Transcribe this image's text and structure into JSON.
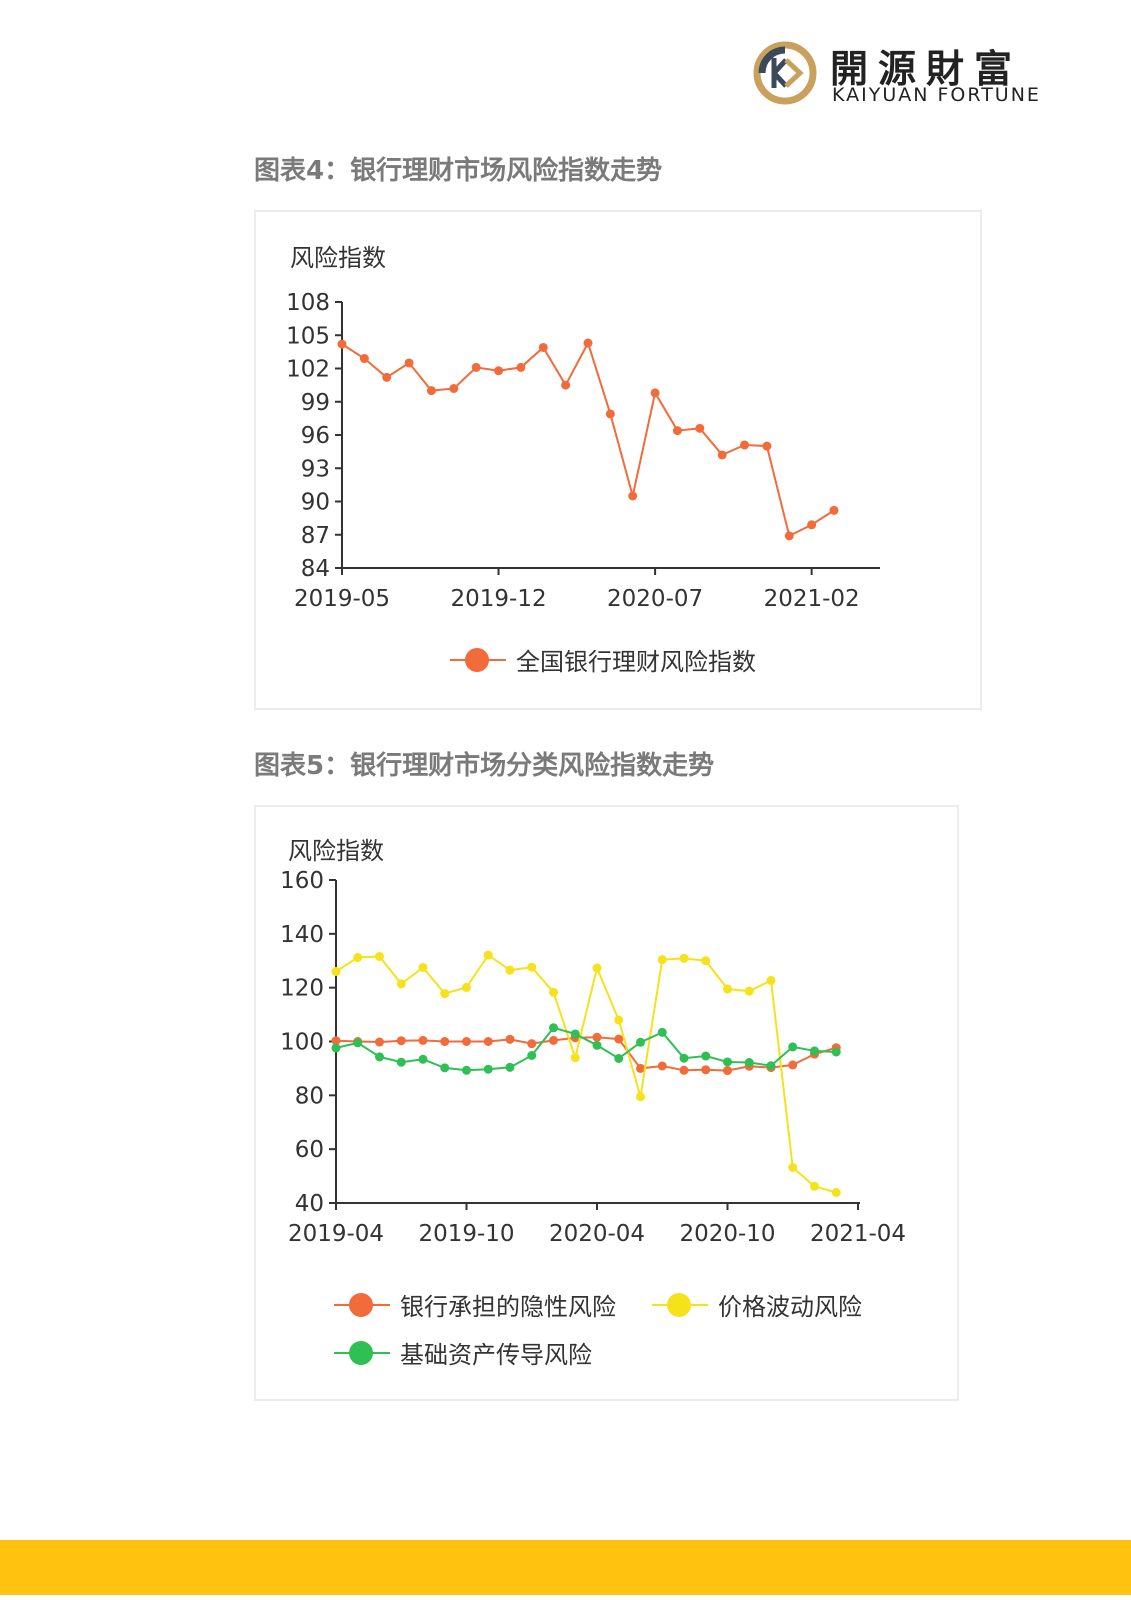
{
  "header": {
    "logo_cn": "開源財富",
    "logo_en": "KAIYUAN FORTUNE",
    "colors": {
      "gold": "#c9a15d",
      "dark": "#3b4a5a"
    }
  },
  "figure4": {
    "caption": "图表4：银行理财市场风险指数走势"
  },
  "figure5": {
    "caption": "图表5：银行理财市场分类风险指数走势"
  },
  "footer": {
    "bar_color": "#ffc20e"
  },
  "chart_data": [
    {
      "type": "line",
      "ylabel": "风险指数",
      "ylim": [
        84,
        108
      ],
      "yticks": [
        84,
        87,
        90,
        93,
        96,
        99,
        102,
        105,
        108
      ],
      "x_start": "2019-05",
      "xticks": [
        "2019-05",
        "2019-12",
        "2020-07",
        "2021-02"
      ],
      "x": [
        "2019-05",
        "2019-06",
        "2019-07",
        "2019-08",
        "2019-09",
        "2019-10",
        "2019-11",
        "2019-12",
        "2020-01",
        "2020-02",
        "2020-03",
        "2020-04",
        "2020-05",
        "2020-06",
        "2020-07",
        "2020-08",
        "2020-09",
        "2020-10",
        "2020-11",
        "2020-12",
        "2021-01",
        "2021-02",
        "2021-03"
      ],
      "series": [
        {
          "name": "全国银行理财风险指数",
          "color": "#f26b3a",
          "values": [
            104.2,
            102.9,
            101.2,
            102.5,
            100.0,
            100.2,
            102.1,
            101.8,
            102.1,
            103.9,
            100.5,
            104.3,
            97.9,
            90.5,
            99.8,
            96.4,
            96.6,
            94.2,
            95.1,
            95.0,
            86.9,
            87.9,
            89.2
          ]
        }
      ]
    },
    {
      "type": "line",
      "ylabel": "风险指数",
      "ylim": [
        40,
        160
      ],
      "yticks": [
        40,
        60,
        80,
        100,
        120,
        140,
        160
      ],
      "x_start": "2019-04",
      "xticks": [
        "2019-04",
        "2019-10",
        "2020-04",
        "2020-10",
        "2021-04"
      ],
      "x": [
        "2019-04",
        "2019-05",
        "2019-06",
        "2019-07",
        "2019-08",
        "2019-09",
        "2019-10",
        "2019-11",
        "2019-12",
        "2020-01",
        "2020-02",
        "2020-03",
        "2020-04",
        "2020-05",
        "2020-06",
        "2020-07",
        "2020-08",
        "2020-09",
        "2020-10",
        "2020-11",
        "2020-12",
        "2021-01",
        "2021-02",
        "2021-03"
      ],
      "series": [
        {
          "name": "银行承担的隐性风险",
          "color": "#f26b3a",
          "values": [
            100.3,
            100.0,
            99.8,
            100.3,
            100.4,
            100.0,
            100.0,
            100.0,
            100.8,
            99.2,
            100.4,
            101.4,
            101.6,
            100.9,
            90.0,
            90.9,
            89.3,
            89.5,
            89.2,
            90.8,
            90.3,
            91.3,
            95.3,
            97.7
          ]
        },
        {
          "name": "价格波动风险",
          "color": "#f5e21a",
          "values": [
            126.0,
            131.2,
            131.6,
            121.4,
            127.5,
            117.8,
            120.1,
            132.1,
            126.5,
            127.6,
            118.3,
            94.0,
            127.3,
            108.0,
            79.5,
            130.4,
            130.9,
            130.0,
            119.5,
            118.7,
            122.7,
            53.2,
            46.2,
            43.9
          ]
        },
        {
          "name": "基础资产传导风险",
          "color": "#2fbf55",
          "values": [
            97.6,
            99.5,
            94.3,
            92.3,
            93.4,
            90.2,
            89.3,
            89.7,
            90.4,
            94.8,
            105.1,
            102.8,
            98.6,
            93.7,
            99.7,
            103.4,
            93.8,
            94.6,
            92.4,
            92.2,
            91.0,
            98.0,
            96.5,
            96.1
          ]
        }
      ]
    }
  ]
}
